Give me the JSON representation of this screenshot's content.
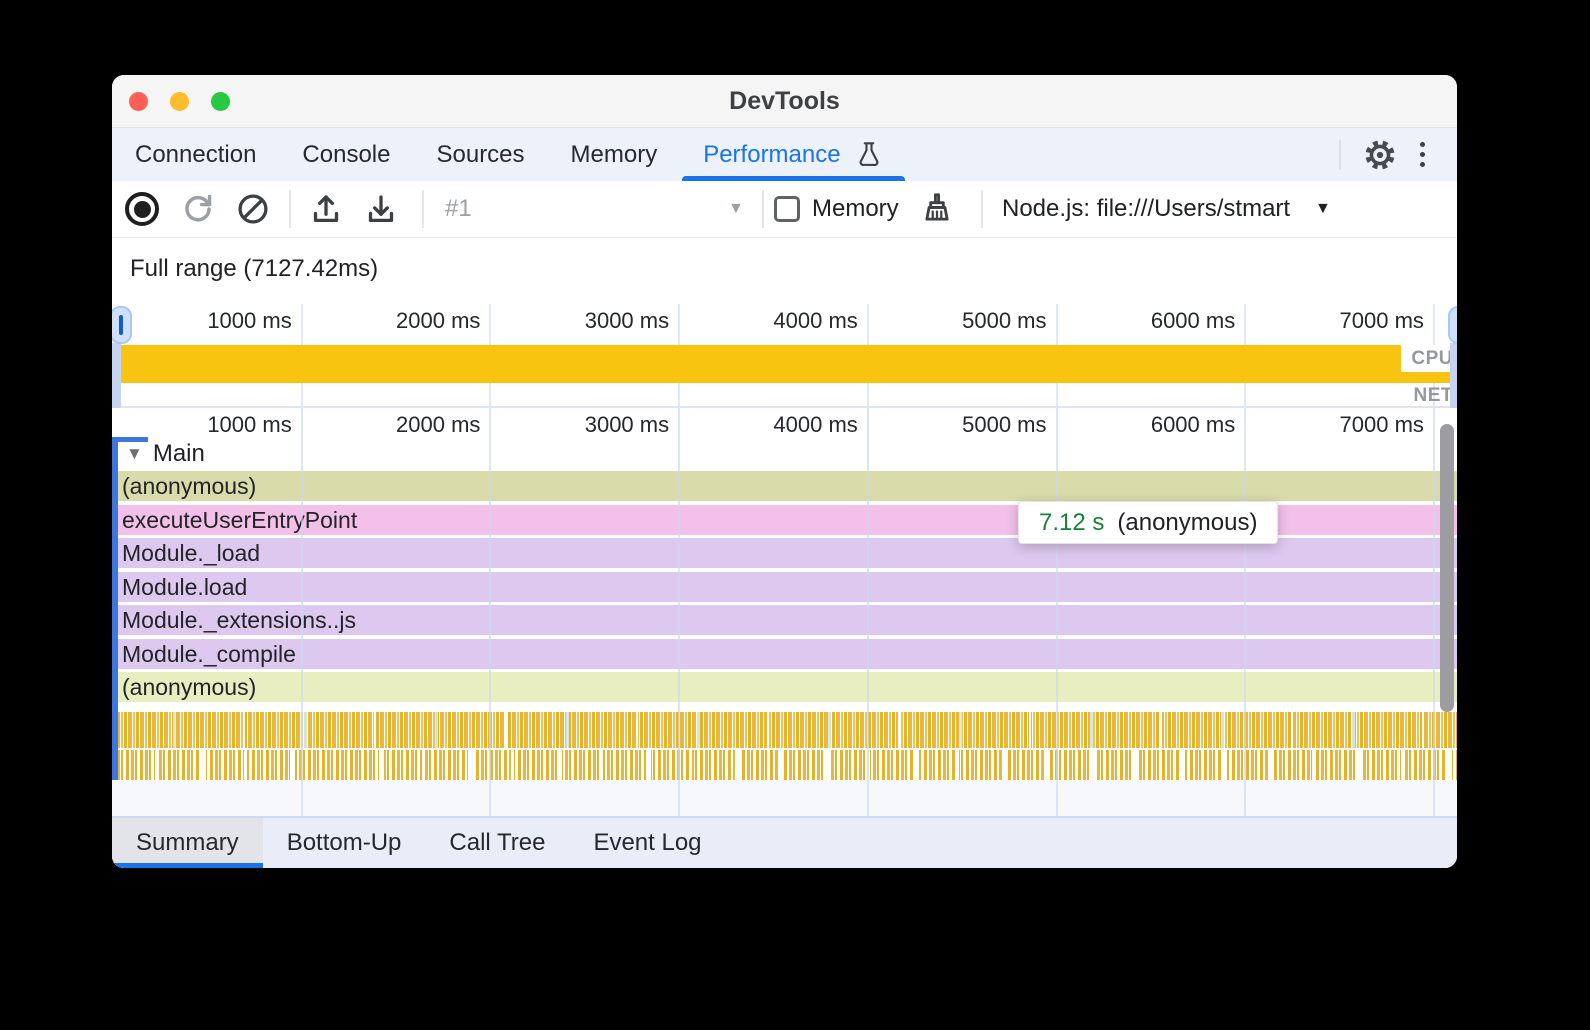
{
  "window": {
    "title": "DevTools"
  },
  "devtools_tabs": {
    "items": [
      {
        "label": "Connection",
        "active": false
      },
      {
        "label": "Console",
        "active": false
      },
      {
        "label": "Sources",
        "active": false
      },
      {
        "label": "Memory",
        "active": false
      },
      {
        "label": "Performance",
        "active": true,
        "icon": "flask-icon"
      }
    ]
  },
  "toolbar": {
    "history_value": "#1",
    "memory_label": "Memory",
    "target_value": "Node.js: file:///Users/stmart"
  },
  "overview": {
    "heading": "Full range (7127.42ms)",
    "total_ms": 7127.42,
    "ticks": [
      "1000 ms",
      "2000 ms",
      "3000 ms",
      "4000 ms",
      "5000 ms",
      "6000 ms",
      "7000 ms"
    ],
    "tick_positions_pct": [
      14.03,
      28.06,
      42.09,
      56.12,
      70.15,
      84.18,
      98.21
    ],
    "cpu_label": "CPU",
    "net_label": "NET",
    "cpu_color": "#f8c411"
  },
  "flame": {
    "ticks": [
      "1000 ms",
      "2000 ms",
      "3000 ms",
      "4000 ms",
      "5000 ms",
      "6000 ms",
      "7000 ms"
    ],
    "tick_positions_pct": [
      14.03,
      28.06,
      42.09,
      56.12,
      70.15,
      84.18,
      98.21
    ],
    "track_label": "Main",
    "rows": [
      {
        "label": "(anonymous)",
        "color": "#d8dcab"
      },
      {
        "label": "executeUserEntryPoint",
        "color": "#f2c0e9"
      },
      {
        "label": "Module._load",
        "color": "#ddc8ef"
      },
      {
        "label": "Module.load",
        "color": "#ddc8ef"
      },
      {
        "label": "Module._extensions..js",
        "color": "#ddc8ef"
      },
      {
        "label": "Module._compile",
        "color": "#ddc8ef"
      },
      {
        "label": "(anonymous)",
        "color": "#e9eec0"
      }
    ],
    "tooltip": {
      "duration": "7.12 s",
      "name": "(anonymous)",
      "duration_color": "#188038"
    }
  },
  "bottom_tabs": {
    "items": [
      {
        "label": "Summary",
        "active": true
      },
      {
        "label": "Bottom-Up",
        "active": false
      },
      {
        "label": "Call Tree",
        "active": false
      },
      {
        "label": "Event Log",
        "active": false
      }
    ]
  },
  "colors": {
    "accent_blue": "#1a73e8"
  }
}
